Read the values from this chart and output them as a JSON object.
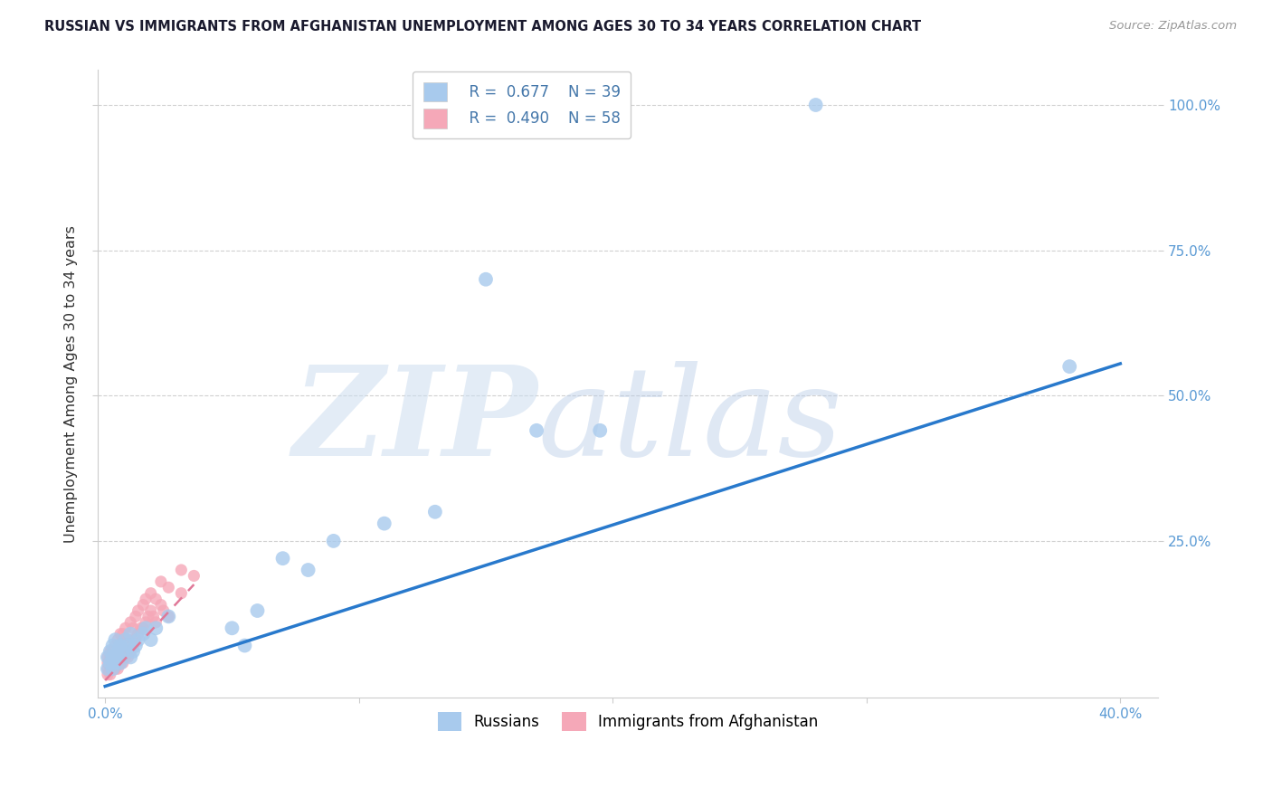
{
  "title": "RUSSIAN VS IMMIGRANTS FROM AFGHANISTAN UNEMPLOYMENT AMONG AGES 30 TO 34 YEARS CORRELATION CHART",
  "source": "Source: ZipAtlas.com",
  "ylabel": "Unemployment Among Ages 30 to 34 years",
  "xlim": [
    -0.003,
    0.415
  ],
  "ylim": [
    -0.02,
    1.06
  ],
  "xticks": [
    0.0,
    0.1,
    0.2,
    0.3,
    0.4
  ],
  "yticks": [
    0.25,
    0.5,
    0.75,
    1.0
  ],
  "xticklabels": [
    "0.0%",
    "",
    "",
    "",
    "40.0%"
  ],
  "yticklabels": [
    "25.0%",
    "50.0%",
    "75.0%",
    "100.0%"
  ],
  "russian_color": "#a8caed",
  "afghan_color": "#f5a8b8",
  "russian_line_color": "#2879cc",
  "afghan_line_color": "#e07898",
  "background_color": "#ffffff",
  "watermark_zip": "ZIP",
  "watermark_atlas": "atlas",
  "russians_label": "Russians",
  "afghan_label": "Immigrants from Afghanistan",
  "tick_color": "#5a9ad4",
  "russian_x": [
    0.001,
    0.001,
    0.002,
    0.002,
    0.003,
    0.003,
    0.003,
    0.004,
    0.004,
    0.005,
    0.005,
    0.006,
    0.006,
    0.007,
    0.008,
    0.009,
    0.01,
    0.01,
    0.011,
    0.012,
    0.013,
    0.015,
    0.016,
    0.018,
    0.02,
    0.025,
    0.05,
    0.055,
    0.06,
    0.07,
    0.08,
    0.09,
    0.11,
    0.13,
    0.15,
    0.17,
    0.195,
    0.28,
    0.38
  ],
  "russian_y": [
    0.03,
    0.05,
    0.04,
    0.06,
    0.03,
    0.05,
    0.07,
    0.04,
    0.08,
    0.05,
    0.06,
    0.04,
    0.07,
    0.06,
    0.08,
    0.07,
    0.05,
    0.09,
    0.06,
    0.07,
    0.08,
    0.09,
    0.1,
    0.08,
    0.1,
    0.12,
    0.1,
    0.07,
    0.13,
    0.22,
    0.2,
    0.25,
    0.28,
    0.3,
    0.7,
    0.44,
    0.44,
    1.0,
    0.55
  ],
  "afghan_x": [
    0.001,
    0.001,
    0.001,
    0.001,
    0.002,
    0.002,
    0.002,
    0.002,
    0.003,
    0.003,
    0.003,
    0.004,
    0.004,
    0.004,
    0.005,
    0.005,
    0.005,
    0.005,
    0.006,
    0.006,
    0.006,
    0.006,
    0.007,
    0.007,
    0.007,
    0.008,
    0.008,
    0.008,
    0.009,
    0.009,
    0.01,
    0.01,
    0.01,
    0.011,
    0.011,
    0.012,
    0.012,
    0.013,
    0.013,
    0.014,
    0.015,
    0.015,
    0.016,
    0.016,
    0.017,
    0.018,
    0.018,
    0.019,
    0.02,
    0.02,
    0.022,
    0.022,
    0.023,
    0.025,
    0.025,
    0.03,
    0.03,
    0.035
  ],
  "afghan_y": [
    0.02,
    0.03,
    0.04,
    0.05,
    0.02,
    0.03,
    0.05,
    0.06,
    0.03,
    0.04,
    0.06,
    0.03,
    0.05,
    0.07,
    0.03,
    0.04,
    0.06,
    0.08,
    0.04,
    0.05,
    0.07,
    0.09,
    0.04,
    0.06,
    0.09,
    0.05,
    0.07,
    0.1,
    0.05,
    0.08,
    0.06,
    0.08,
    0.11,
    0.07,
    0.1,
    0.08,
    0.12,
    0.09,
    0.13,
    0.1,
    0.1,
    0.14,
    0.11,
    0.15,
    0.12,
    0.13,
    0.16,
    0.12,
    0.11,
    0.15,
    0.14,
    0.18,
    0.13,
    0.12,
    0.17,
    0.16,
    0.2,
    0.19
  ],
  "russian_line_x": [
    0.0,
    0.4
  ],
  "russian_line_y": [
    0.0,
    0.555
  ],
  "afghan_line_x": [
    0.0,
    0.035
  ],
  "afghan_line_y": [
    0.01,
    0.175
  ]
}
